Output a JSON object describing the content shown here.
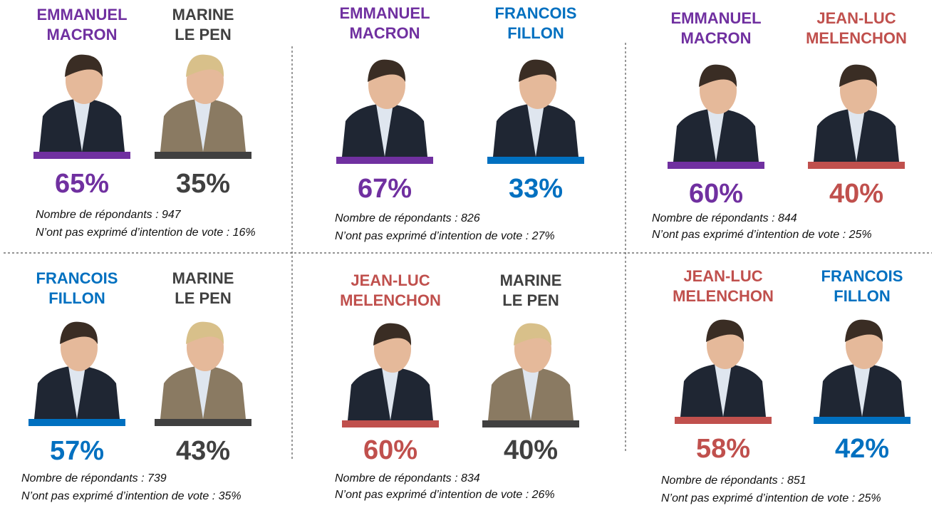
{
  "panels": [
    {
      "candidates": [
        {
          "name": [
            "EMMANUEL",
            "MACRON"
          ],
          "result": "65%",
          "color": "#7030a0"
        },
        {
          "name": [
            "MARINE",
            "LE PEN"
          ],
          "result": "35%",
          "color": "#404040"
        }
      ],
      "respondents": "Nombre de répondants : 947",
      "no_intent": "N’ont pas exprimé d’intention de vote : 16%"
    },
    {
      "candidates": [
        {
          "name": [
            "EMMANUEL",
            "MACRON"
          ],
          "result": "67%",
          "color": "#7030a0"
        },
        {
          "name": [
            "FRANCOIS",
            "FILLON"
          ],
          "result": "33%",
          "color": "#0070c0"
        }
      ],
      "respondents": "Nombre de répondants : 826",
      "no_intent": "N’ont pas exprimé d’intention de vote : 27%"
    },
    {
      "candidates": [
        {
          "name": [
            "EMMANUEL",
            "MACRON"
          ],
          "result": "60%",
          "color": "#7030a0"
        },
        {
          "name": [
            "JEAN-LUC",
            "MELENCHON"
          ],
          "result": "40%",
          "color": "#c0504d"
        }
      ],
      "respondents": "Nombre de répondants : 844",
      "no_intent": "N’ont pas exprimé d’intention de vote : 25%"
    },
    {
      "candidates": [
        {
          "name": [
            "FRANCOIS",
            "FILLON"
          ],
          "result": "57%",
          "color": "#0070c0"
        },
        {
          "name": [
            "MARINE",
            "LE PEN"
          ],
          "result": "43%",
          "color": "#404040"
        }
      ],
      "respondents": "Nombre de répondants : 739",
      "no_intent": "N’ont pas exprimé d’intention de vote : 35%"
    },
    {
      "candidates": [
        {
          "name": [
            "JEAN-LUC",
            "MELENCHON"
          ],
          "result": "60%",
          "color": "#c0504d"
        },
        {
          "name": [
            "MARINE",
            "LE PEN"
          ],
          "result": "40%",
          "color": "#404040"
        }
      ],
      "respondents": "Nombre de répondants : 834",
      "no_intent": "N’ont pas exprimé d’intention de vote : 26%"
    },
    {
      "candidates": [
        {
          "name": [
            "JEAN-LUC",
            "MELENCHON"
          ],
          "result": "58%",
          "color": "#c0504d"
        },
        {
          "name": [
            "FRANCOIS",
            "FILLON"
          ],
          "result": "42%",
          "color": "#0070c0"
        }
      ],
      "respondents": "Nombre de répondants : 851",
      "no_intent": "N’ont pas exprimé d’intention de vote : 25%"
    }
  ]
}
